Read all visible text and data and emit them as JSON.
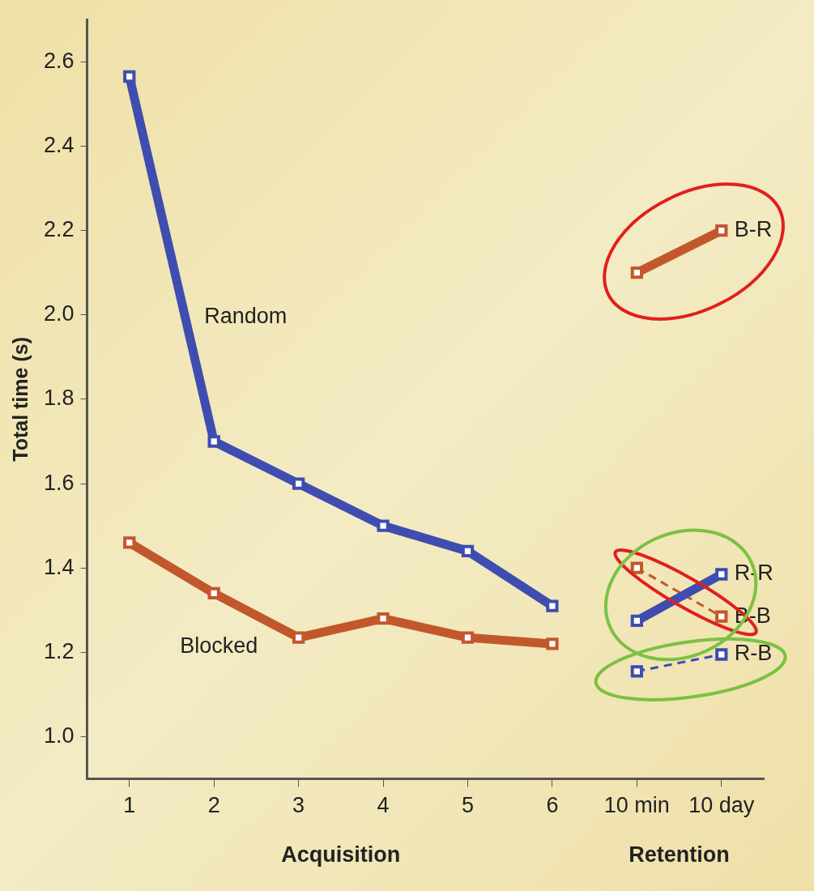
{
  "chart_data": {
    "type": "line",
    "ylabel": "Total time (s)",
    "xlabel": "Acquisition",
    "annotations": [
      "Retention"
    ],
    "categories": [
      "1",
      "2",
      "3",
      "4",
      "5",
      "6",
      "10 min",
      "10 day"
    ],
    "ylim": [
      0.9,
      2.7
    ],
    "yticks": [
      {
        "value": 1.0,
        "label": "1.0"
      },
      {
        "value": 1.2,
        "label": "1.2"
      },
      {
        "value": 1.4,
        "label": "1.4"
      },
      {
        "value": 1.6,
        "label": "1.6"
      },
      {
        "value": 1.8,
        "label": "1.8"
      },
      {
        "value": 2.0,
        "label": "2.0"
      },
      {
        "value": 2.2,
        "label": "2.2"
      },
      {
        "value": 2.4,
        "label": "2.4"
      },
      {
        "value": 2.6,
        "label": "2.6"
      }
    ],
    "grid": false,
    "legend": false,
    "marker": "square",
    "series": [
      {
        "name": "Random",
        "color": "#3f4db0",
        "line_style": "solid",
        "values": [
          2.565,
          1.7,
          1.6,
          1.5,
          1.44,
          1.31,
          null,
          null
        ]
      },
      {
        "name": "Blocked",
        "color": "#c2572c",
        "line_style": "solid",
        "values": [
          1.46,
          1.34,
          1.235,
          1.28,
          1.235,
          1.22,
          null,
          null
        ]
      },
      {
        "name": "B-R",
        "color": "#c2572c",
        "line_style": "solid",
        "values": [
          null,
          null,
          null,
          null,
          null,
          null,
          2.1,
          2.2
        ]
      },
      {
        "name": "R-R",
        "color": "#3f4db0",
        "line_style": "solid",
        "values": [
          null,
          null,
          null,
          null,
          null,
          null,
          1.275,
          1.385
        ]
      },
      {
        "name": "B-B",
        "color": "#c2572c",
        "line_style": "dashed",
        "values": [
          null,
          null,
          null,
          null,
          null,
          null,
          1.4,
          1.285
        ]
      },
      {
        "name": "R-B",
        "color": "#3f4db0",
        "line_style": "dashed",
        "values": [
          null,
          null,
          null,
          null,
          null,
          null,
          1.155,
          1.195
        ]
      }
    ]
  }
}
